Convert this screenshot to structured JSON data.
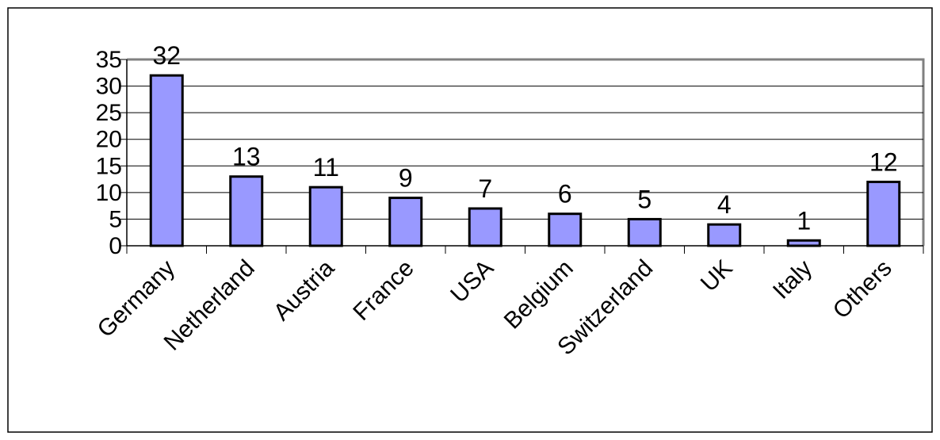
{
  "chart_data": {
    "type": "bar",
    "categories": [
      "Germany",
      "Netherland",
      "Austria",
      "France",
      "USA",
      "Belgium",
      "Switzerland",
      "UK",
      "Italy",
      "Others"
    ],
    "values": [
      32,
      13,
      11,
      9,
      7,
      6,
      5,
      4,
      1,
      12
    ],
    "color": "#9999ff",
    "ylim": [
      0,
      35
    ],
    "yticks": [
      0,
      5,
      10,
      15,
      20,
      25,
      30,
      35
    ],
    "grid": true
  }
}
